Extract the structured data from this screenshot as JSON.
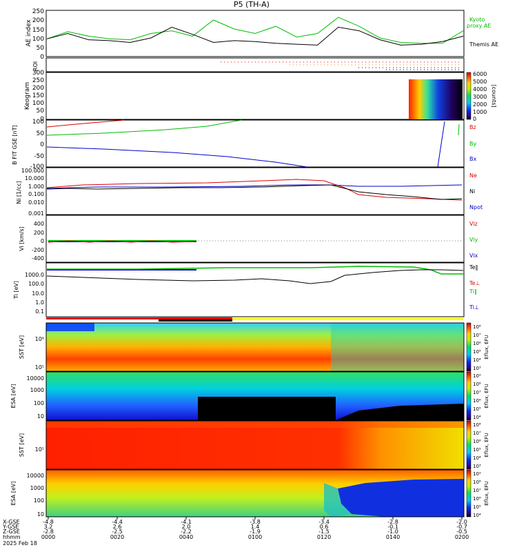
{
  "title": "P5 (TH-A)",
  "chart_data": [
    {
      "type": "line",
      "id": "ae",
      "ylabel": "AE index",
      "yticks": [
        "250",
        "200",
        "150",
        "100",
        "50",
        "0"
      ],
      "ylim": [
        0,
        250
      ],
      "x": [
        0,
        0.05,
        0.1,
        0.15,
        0.2,
        0.25,
        0.3,
        0.35,
        0.4,
        0.45,
        0.5,
        0.55,
        0.6,
        0.65,
        0.7,
        0.75,
        0.8,
        0.85,
        0.9,
        0.95,
        1.0
      ],
      "series": [
        {
          "name": "Kyoto proxy AE",
          "color": "#00bb00",
          "values": [
            95,
            135,
            110,
            95,
            90,
            125,
            140,
            110,
            200,
            150,
            125,
            165,
            105,
            125,
            215,
            165,
            100,
            75,
            70,
            70,
            140
          ]
        },
        {
          "name": "Themis AE",
          "color": "#000000",
          "values": [
            95,
            125,
            90,
            85,
            75,
            100,
            160,
            120,
            75,
            85,
            80,
            70,
            65,
            60,
            160,
            140,
            90,
            60,
            65,
            80,
            110
          ]
        }
      ],
      "legend": [
        {
          "label": "Kyoto",
          "color": "#00bb00"
        },
        {
          "label": "proxy AE",
          "color": "#00bb00"
        },
        {
          "label": "Themis AE",
          "color": "#000000"
        }
      ]
    },
    {
      "type": "scatter",
      "id": "roi",
      "ylabel": "ROI"
    },
    {
      "type": "heatmap",
      "id": "keogram",
      "ylabel": "Keogram",
      "yticks": [
        "300",
        "250",
        "200",
        "150",
        "100",
        "50",
        "0"
      ],
      "colorbar_label": "[counts]",
      "colorbar_ticks": [
        "6000",
        "5000",
        "4000",
        "3000",
        "2000",
        "1000",
        "0"
      ]
    },
    {
      "type": "line",
      "id": "bfgm",
      "ylabel": "B FIT GSE [nT]",
      "yticks": [
        "100",
        "50",
        "0",
        "-50",
        "-100"
      ],
      "ylim": [
        -100,
        100
      ],
      "series": [
        {
          "name": "Bz",
          "color": "#dd0000"
        },
        {
          "name": "By",
          "color": "#00bb00"
        },
        {
          "name": "Bx",
          "color": "#0000cc"
        }
      ]
    },
    {
      "type": "line",
      "id": "density",
      "ylabel": "Ni [1/cc]",
      "yticks": [
        "100.000",
        "10.000",
        "1.000",
        "0.100",
        "0.010",
        "0.001"
      ],
      "series": [
        {
          "name": "Ne",
          "color": "#dd0000"
        },
        {
          "name": "Ni",
          "color": "#000000"
        },
        {
          "name": "Npot",
          "color": "#0000cc"
        }
      ]
    },
    {
      "type": "line",
      "id": "velocity",
      "ylabel": "Vi [km/s]",
      "yticks": [
        "400",
        "200",
        "0",
        "-200",
        "-400"
      ],
      "ylim": [
        -500,
        500
      ],
      "series": [
        {
          "name": "Viz",
          "color": "#dd0000"
        },
        {
          "name": "Viy",
          "color": "#00bb00"
        },
        {
          "name": "Vix",
          "color": "#0000cc"
        }
      ]
    },
    {
      "type": "line",
      "id": "temperature",
      "ylabel": "Ti [eV]",
      "yticks": [
        "1000.0",
        "100.0",
        "10.0",
        "1.0",
        "0.1"
      ],
      "series": [
        {
          "name": "Te‖",
          "color": "#000000"
        },
        {
          "name": "Te⊥",
          "color": "#dd0000"
        },
        {
          "name": "Ti‖",
          "color": "#00bb00"
        },
        {
          "name": "Ti⊥",
          "color": "#0000cc"
        }
      ]
    },
    {
      "type": "heatmap",
      "id": "sst_e",
      "ylabel": "SST [eV]",
      "yticks": [
        "10⁶",
        "10⁵"
      ],
      "colorbar_label": "Eflux, EFU",
      "colorbar_ticks": [
        "10⁸",
        "10⁷",
        "10⁶",
        "10⁵",
        "10⁴",
        "10³"
      ]
    },
    {
      "type": "heatmap",
      "id": "esa_e",
      "ylabel": "ESA [eV]",
      "yticks": [
        "10000",
        "1000",
        "100",
        "10"
      ],
      "colorbar_label": "Eflux, EFU",
      "colorbar_ticks": [
        "10⁹",
        "10⁸",
        "10⁷",
        "10⁶",
        "10⁵",
        "10⁴"
      ]
    },
    {
      "type": "heatmap",
      "id": "sst_i",
      "ylabel": "SST [eV]",
      "yticks": [
        "10⁵"
      ],
      "colorbar_label": "Eflux, EFU",
      "colorbar_ticks": [
        "10⁸",
        "10⁷",
        "10⁶",
        "10⁵",
        "10⁴",
        "10³"
      ]
    },
    {
      "type": "heatmap",
      "id": "esa_i",
      "ylabel": "ESA [eV]",
      "yticks": [
        "10000",
        "1000",
        "100",
        "10"
      ],
      "colorbar_label": "Eflux, EFU",
      "colorbar_ticks": [
        "10⁹",
        "10⁸",
        "10⁷",
        "10⁶",
        "10⁵",
        "10⁴"
      ]
    }
  ],
  "time_axis": {
    "row_labels": [
      "X-GSE",
      "Y-GSE",
      "Z-GSE",
      "hhmm",
      "2025 Feb 18"
    ],
    "ticks": [
      {
        "x_gse": "-4.8",
        "y_gse": "3.2",
        "z_gse": "-2.8",
        "hhmm": "0000"
      },
      {
        "x_gse": "-4.4",
        "y_gse": "2.6",
        "z_gse": "-2.5",
        "hhmm": "0020"
      },
      {
        "x_gse": "-4.1",
        "y_gse": "2.0",
        "z_gse": "-2.2",
        "hhmm": "0040"
      },
      {
        "x_gse": "-3.8",
        "y_gse": "1.4",
        "z_gse": "-1.9",
        "hhmm": "0100"
      },
      {
        "x_gse": "-3.4",
        "y_gse": "0.6",
        "z_gse": "-1.5",
        "hhmm": "0120"
      },
      {
        "x_gse": "-2.8",
        "y_gse": "-0.1",
        "z_gse": "-1.0",
        "hhmm": "0140"
      },
      {
        "x_gse": "-2.0",
        "y_gse": "-0.7",
        "z_gse": "-0.5",
        "hhmm": "0200"
      }
    ]
  },
  "colors": {
    "red": "#dd0000",
    "green": "#00bb00",
    "blue": "#0000cc",
    "black": "#000000"
  }
}
